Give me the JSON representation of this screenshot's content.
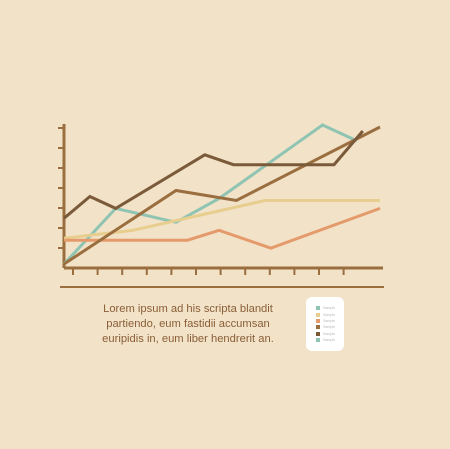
{
  "caption": {
    "lines": [
      "Lorem ipsum ad his scripta blandit",
      "partiendo, eum fastidii accumsan",
      "euripidis in, eum liber hendrerit an."
    ]
  },
  "chart_data": {
    "type": "line",
    "title": "",
    "xlabel": "",
    "ylabel": "",
    "xlim": [
      0,
      11
    ],
    "ylim": [
      0,
      7
    ],
    "grid": false,
    "legend_placement": "bottom-right",
    "series": [
      {
        "name": "Sample",
        "color": "#8fc4b3",
        "x": [
          0,
          1.8,
          3.9,
          5.4,
          9.0,
          10.2
        ],
        "y": [
          0.1,
          2.9,
          2.2,
          3.4,
          7.1,
          6.3
        ]
      },
      {
        "name": "Sample",
        "color": "#e7ce8e",
        "x": [
          0,
          2.4,
          7.0,
          11.0
        ],
        "y": [
          1.4,
          1.8,
          3.3,
          3.3
        ]
      },
      {
        "name": "Sample",
        "color": "#e59a6b",
        "x": [
          0,
          4.3,
          5.4,
          7.2,
          11.0
        ],
        "y": [
          1.3,
          1.3,
          1.8,
          0.9,
          2.9
        ]
      },
      {
        "name": "Sample",
        "color": "#9b6e3f",
        "x": [
          0,
          3.9,
          6.0,
          11.0
        ],
        "y": [
          0.1,
          3.8,
          3.3,
          7.0
        ]
      },
      {
        "name": "Sample",
        "color": "#7b5a3a",
        "x": [
          0,
          0.9,
          1.8,
          4.9,
          5.9,
          9.4,
          10.4
        ],
        "y": [
          2.4,
          3.5,
          2.9,
          5.6,
          5.1,
          5.1,
          6.8
        ]
      },
      {
        "name": "Sample",
        "color": "#8fc4b3",
        "x": [],
        "y": []
      }
    ]
  }
}
